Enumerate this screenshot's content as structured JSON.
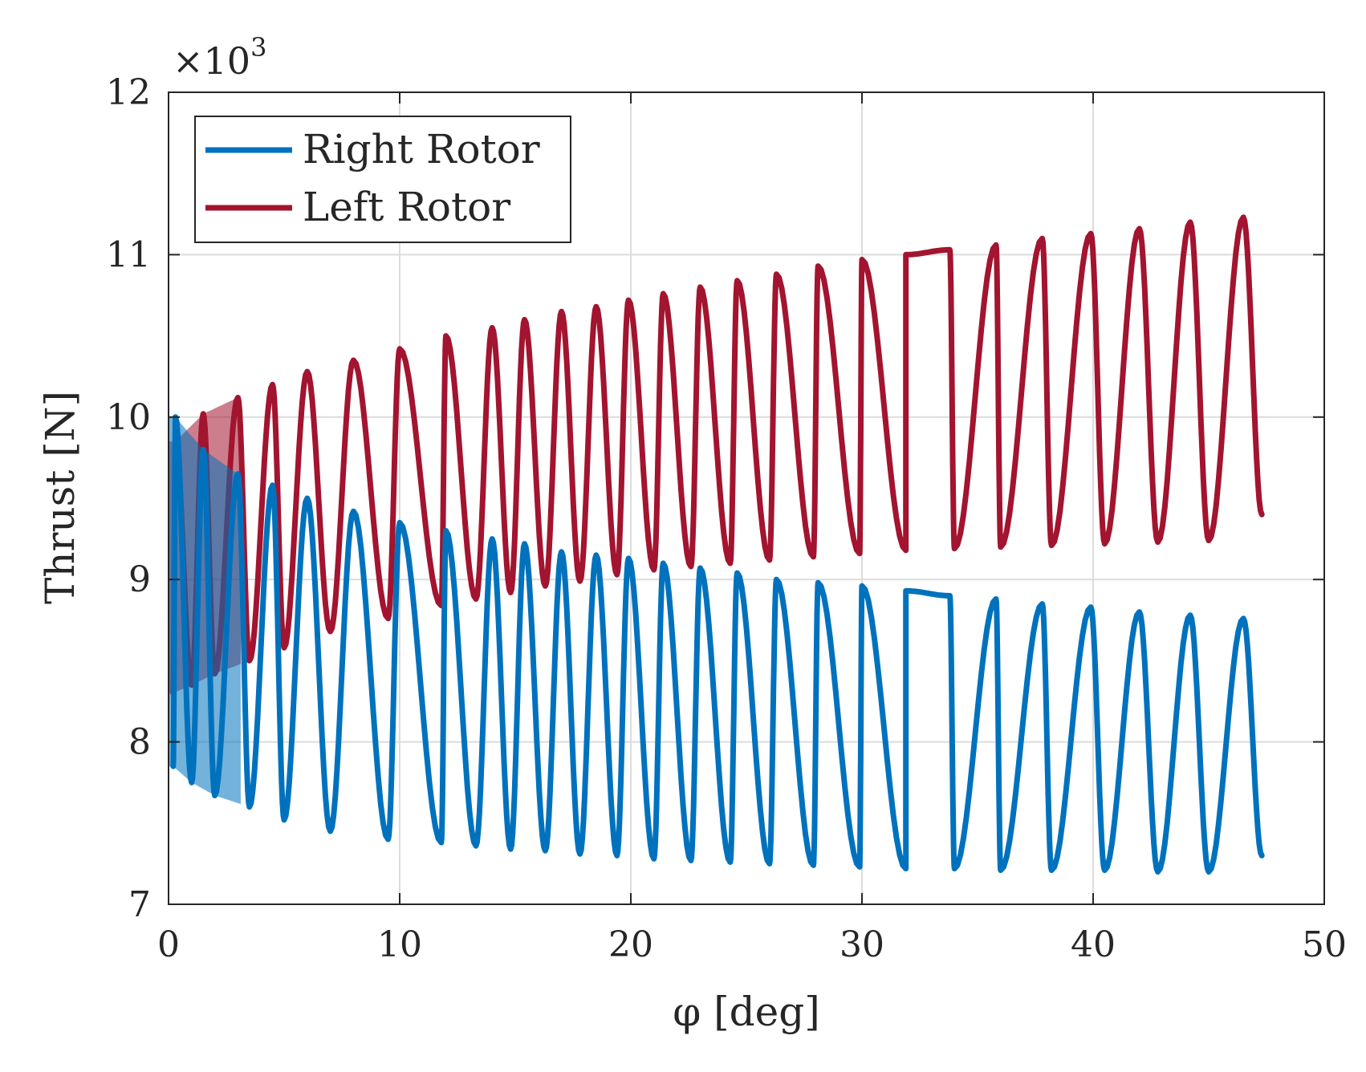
{
  "chart_data": {
    "type": "line",
    "title": "",
    "xlabel": "φ [deg]",
    "ylabel": "Thrust [N]",
    "xlim": [
      0,
      50
    ],
    "ylim": [
      7,
      12
    ],
    "y_multiplier_label": "×10",
    "y_multiplier_exponent": "3",
    "x_ticks": [
      "0",
      "10",
      "20",
      "30",
      "40",
      "50"
    ],
    "y_ticks": [
      "7",
      "8",
      "9",
      "10",
      "11",
      "12"
    ],
    "grid": true,
    "legend_position": "top-left",
    "x_end": 47.3,
    "series": [
      {
        "name": "Right Rotor",
        "color": "#0072BD",
        "peaks": [
          [
            0.3,
            10.0
          ],
          [
            1.5,
            9.8
          ],
          [
            3.0,
            9.65
          ],
          [
            4.5,
            9.58
          ],
          [
            6.0,
            9.5
          ],
          [
            8.0,
            9.42
          ],
          [
            10.0,
            9.35
          ],
          [
            12.0,
            9.3
          ],
          [
            14.0,
            9.25
          ],
          [
            15.4,
            9.22
          ],
          [
            17.0,
            9.17
          ],
          [
            18.5,
            9.15
          ],
          [
            19.9,
            9.13
          ],
          [
            21.4,
            9.1
          ],
          [
            23.0,
            9.07
          ],
          [
            24.6,
            9.04
          ],
          [
            26.3,
            9.0
          ],
          [
            28.1,
            8.98
          ],
          [
            30.0,
            8.96
          ],
          [
            31.9,
            8.93
          ],
          [
            33.8,
            8.9
          ],
          [
            35.8,
            8.88
          ],
          [
            37.8,
            8.85
          ],
          [
            39.9,
            8.83
          ],
          [
            42.0,
            8.8
          ],
          [
            44.2,
            8.78
          ],
          [
            46.5,
            8.76
          ]
        ],
        "troughs": [
          [
            0.2,
            7.85
          ],
          [
            1.0,
            7.75
          ],
          [
            2.0,
            7.67
          ],
          [
            3.5,
            7.6
          ],
          [
            5.0,
            7.52
          ],
          [
            7.0,
            7.45
          ],
          [
            9.5,
            7.4
          ],
          [
            11.8,
            7.38
          ],
          [
            13.3,
            7.36
          ],
          [
            14.8,
            7.34
          ],
          [
            16.3,
            7.33
          ],
          [
            17.8,
            7.31
          ],
          [
            19.4,
            7.3
          ],
          [
            21.0,
            7.28
          ],
          [
            22.6,
            7.27
          ],
          [
            24.3,
            7.26
          ],
          [
            26.0,
            7.25
          ],
          [
            27.9,
            7.24
          ],
          [
            29.9,
            7.23
          ],
          [
            31.9,
            7.22
          ],
          [
            34.0,
            7.22
          ],
          [
            36.0,
            7.21
          ],
          [
            38.2,
            7.21
          ],
          [
            40.5,
            7.21
          ],
          [
            42.8,
            7.2
          ],
          [
            45.0,
            7.2
          ],
          [
            47.3,
            7.3
          ]
        ]
      },
      {
        "name": "Left Rotor",
        "color": "#A2142F",
        "peaks": [
          [
            0.3,
            9.85
          ],
          [
            1.5,
            10.02
          ],
          [
            3.0,
            10.12
          ],
          [
            4.5,
            10.2
          ],
          [
            6.0,
            10.28
          ],
          [
            8.0,
            10.35
          ],
          [
            10.0,
            10.42
          ],
          [
            12.0,
            10.5
          ],
          [
            14.0,
            10.55
          ],
          [
            15.4,
            10.6
          ],
          [
            17.0,
            10.65
          ],
          [
            18.5,
            10.68
          ],
          [
            19.9,
            10.72
          ],
          [
            21.4,
            10.76
          ],
          [
            23.0,
            10.8
          ],
          [
            24.6,
            10.84
          ],
          [
            26.3,
            10.88
          ],
          [
            28.1,
            10.93
          ],
          [
            30.0,
            10.97
          ],
          [
            31.9,
            11.0
          ],
          [
            33.8,
            11.03
          ],
          [
            35.8,
            11.06
          ],
          [
            37.8,
            11.1
          ],
          [
            39.9,
            11.13
          ],
          [
            42.0,
            11.16
          ],
          [
            44.2,
            11.2
          ],
          [
            46.5,
            11.23
          ]
        ],
        "troughs": [
          [
            0.2,
            8.3
          ],
          [
            1.0,
            8.35
          ],
          [
            2.0,
            8.42
          ],
          [
            3.5,
            8.5
          ],
          [
            5.0,
            8.58
          ],
          [
            7.0,
            8.68
          ],
          [
            9.5,
            8.76
          ],
          [
            11.8,
            8.84
          ],
          [
            13.3,
            8.88
          ],
          [
            14.8,
            8.92
          ],
          [
            16.3,
            8.96
          ],
          [
            17.8,
            8.99
          ],
          [
            19.4,
            9.03
          ],
          [
            21.0,
            9.06
          ],
          [
            22.6,
            9.08
          ],
          [
            24.3,
            9.1
          ],
          [
            26.0,
            9.12
          ],
          [
            27.9,
            9.14
          ],
          [
            29.9,
            9.16
          ],
          [
            31.9,
            9.18
          ],
          [
            34.0,
            9.19
          ],
          [
            36.0,
            9.2
          ],
          [
            38.2,
            9.21
          ],
          [
            40.5,
            9.22
          ],
          [
            42.8,
            9.23
          ],
          [
            45.0,
            9.24
          ],
          [
            47.3,
            9.4
          ]
        ]
      }
    ]
  }
}
